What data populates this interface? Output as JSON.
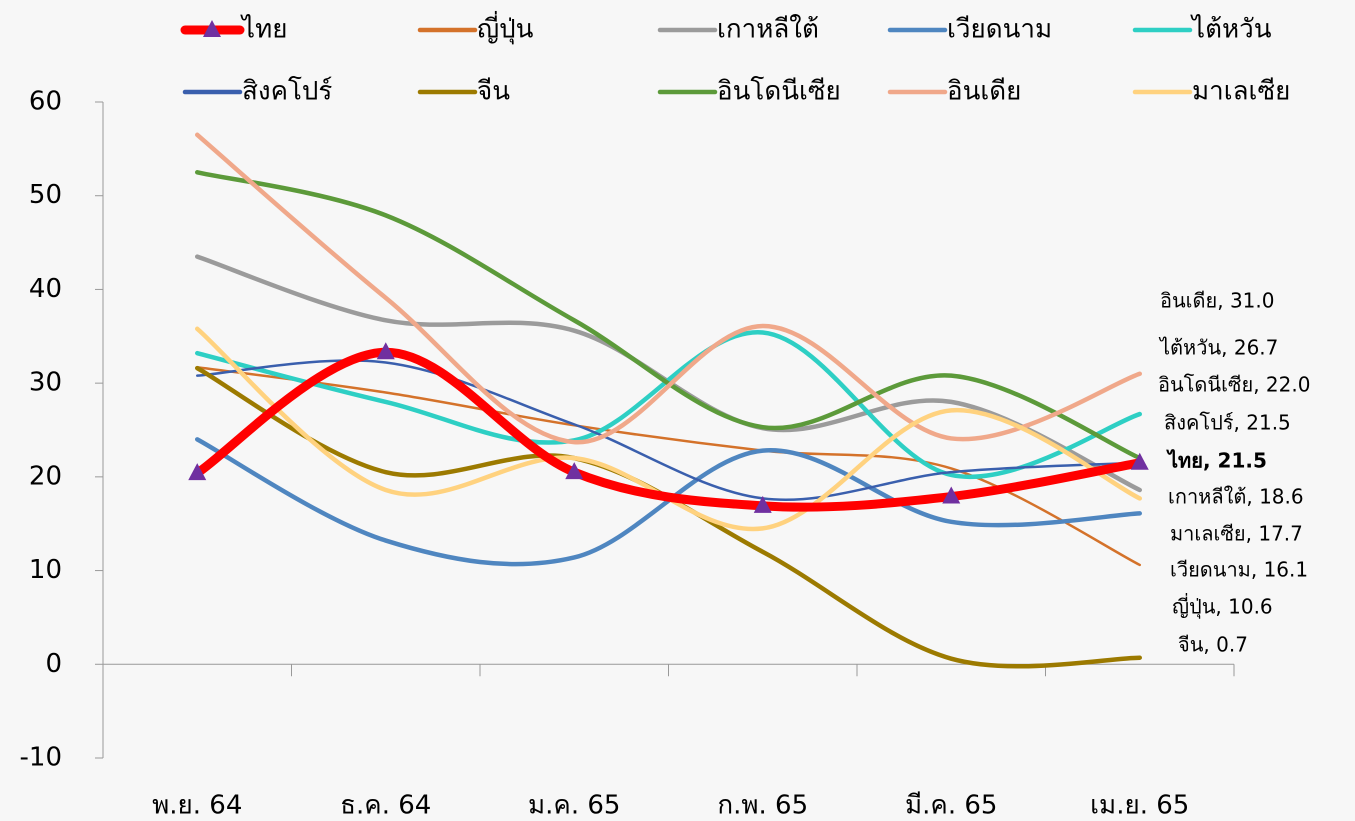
{
  "chart_data": {
    "type": "line",
    "categories": [
      "พ.ย. 64",
      "ธ.ค. 64",
      "ม.ค. 65",
      "ก.พ. 65",
      "มี.ค. 65",
      "เม.ย. 65"
    ],
    "ylim": [
      -10,
      60
    ],
    "yticks": [
      -10,
      0,
      10,
      20,
      30,
      40,
      50,
      60
    ],
    "series": [
      {
        "name": "ไทย",
        "color": "#ff0000",
        "marker": "triangle",
        "marker_color": "#7030a0",
        "values": [
          20.4,
          33.3,
          20.5,
          16.9,
          17.9,
          21.5
        ],
        "value_labels": [
          null,
          null,
          null,
          null,
          null,
          "ไทย, 21.5"
        ]
      },
      {
        "name": "ญี่ปุ่น",
        "color": "#d4722a",
        "values": [
          31.7,
          29.0,
          25.5,
          22.8,
          20.9,
          10.6
        ],
        "value_labels": [
          null,
          null,
          null,
          null,
          null,
          "ญี่ปุ่น, 10.6"
        ]
      },
      {
        "name": "เกาหลีใต้",
        "color": "#9b9b9b",
        "values": [
          43.5,
          36.7,
          35.6,
          25.2,
          28.0,
          18.6
        ],
        "value_labels": [
          null,
          null,
          null,
          null,
          null,
          "เกาหลีใต้, 18.6"
        ]
      },
      {
        "name": "เวียดนาม",
        "color": "#4f86c0",
        "values": [
          24.0,
          13.2,
          11.4,
          22.8,
          15.2,
          16.1
        ],
        "value_labels": [
          null,
          null,
          null,
          null,
          null,
          "เวียดนาม, 16.1"
        ]
      },
      {
        "name": "ไต้หวัน",
        "color": "#2ecfc4",
        "values": [
          33.2,
          28.0,
          23.9,
          35.4,
          20.2,
          26.7
        ],
        "value_labels": [
          null,
          null,
          null,
          null,
          null,
          "ไต้หวัน, 26.7"
        ]
      },
      {
        "name": "สิงคโปร์",
        "color": "#3a5fad",
        "values": [
          30.8,
          32.2,
          25.6,
          17.7,
          20.5,
          21.5
        ],
        "value_labels": [
          null,
          null,
          null,
          null,
          null,
          "สิงคโปร์, 21.5"
        ]
      },
      {
        "name": "จีน",
        "color": "#9c7a00",
        "values": [
          31.6,
          20.5,
          22.0,
          12.0,
          0.6,
          0.7
        ],
        "value_labels": [
          null,
          null,
          null,
          null,
          null,
          "จีน, 0.7"
        ]
      },
      {
        "name": "อินโดนีเซีย",
        "color": "#5c9a3a",
        "values": [
          52.5,
          47.9,
          36.7,
          25.3,
          30.8,
          22.0
        ],
        "value_labels": [
          null,
          null,
          null,
          null,
          null,
          "อินโดนีเซีย, 22.0"
        ]
      },
      {
        "name": "อินเดีย",
        "color": "#f0a88a",
        "values": [
          56.5,
          39.1,
          23.7,
          36.1,
          24.1,
          31.0
        ],
        "value_labels": [
          null,
          null,
          null,
          null,
          null,
          "อินเดีย, 31.0"
        ]
      },
      {
        "name": "มาเลเซีย",
        "color": "#ffd27f",
        "values": [
          35.8,
          18.6,
          22.0,
          14.5,
          27.1,
          17.7
        ],
        "value_labels": [
          null,
          null,
          null,
          null,
          null,
          "มาเลเซีย, 17.7"
        ]
      }
    ]
  }
}
